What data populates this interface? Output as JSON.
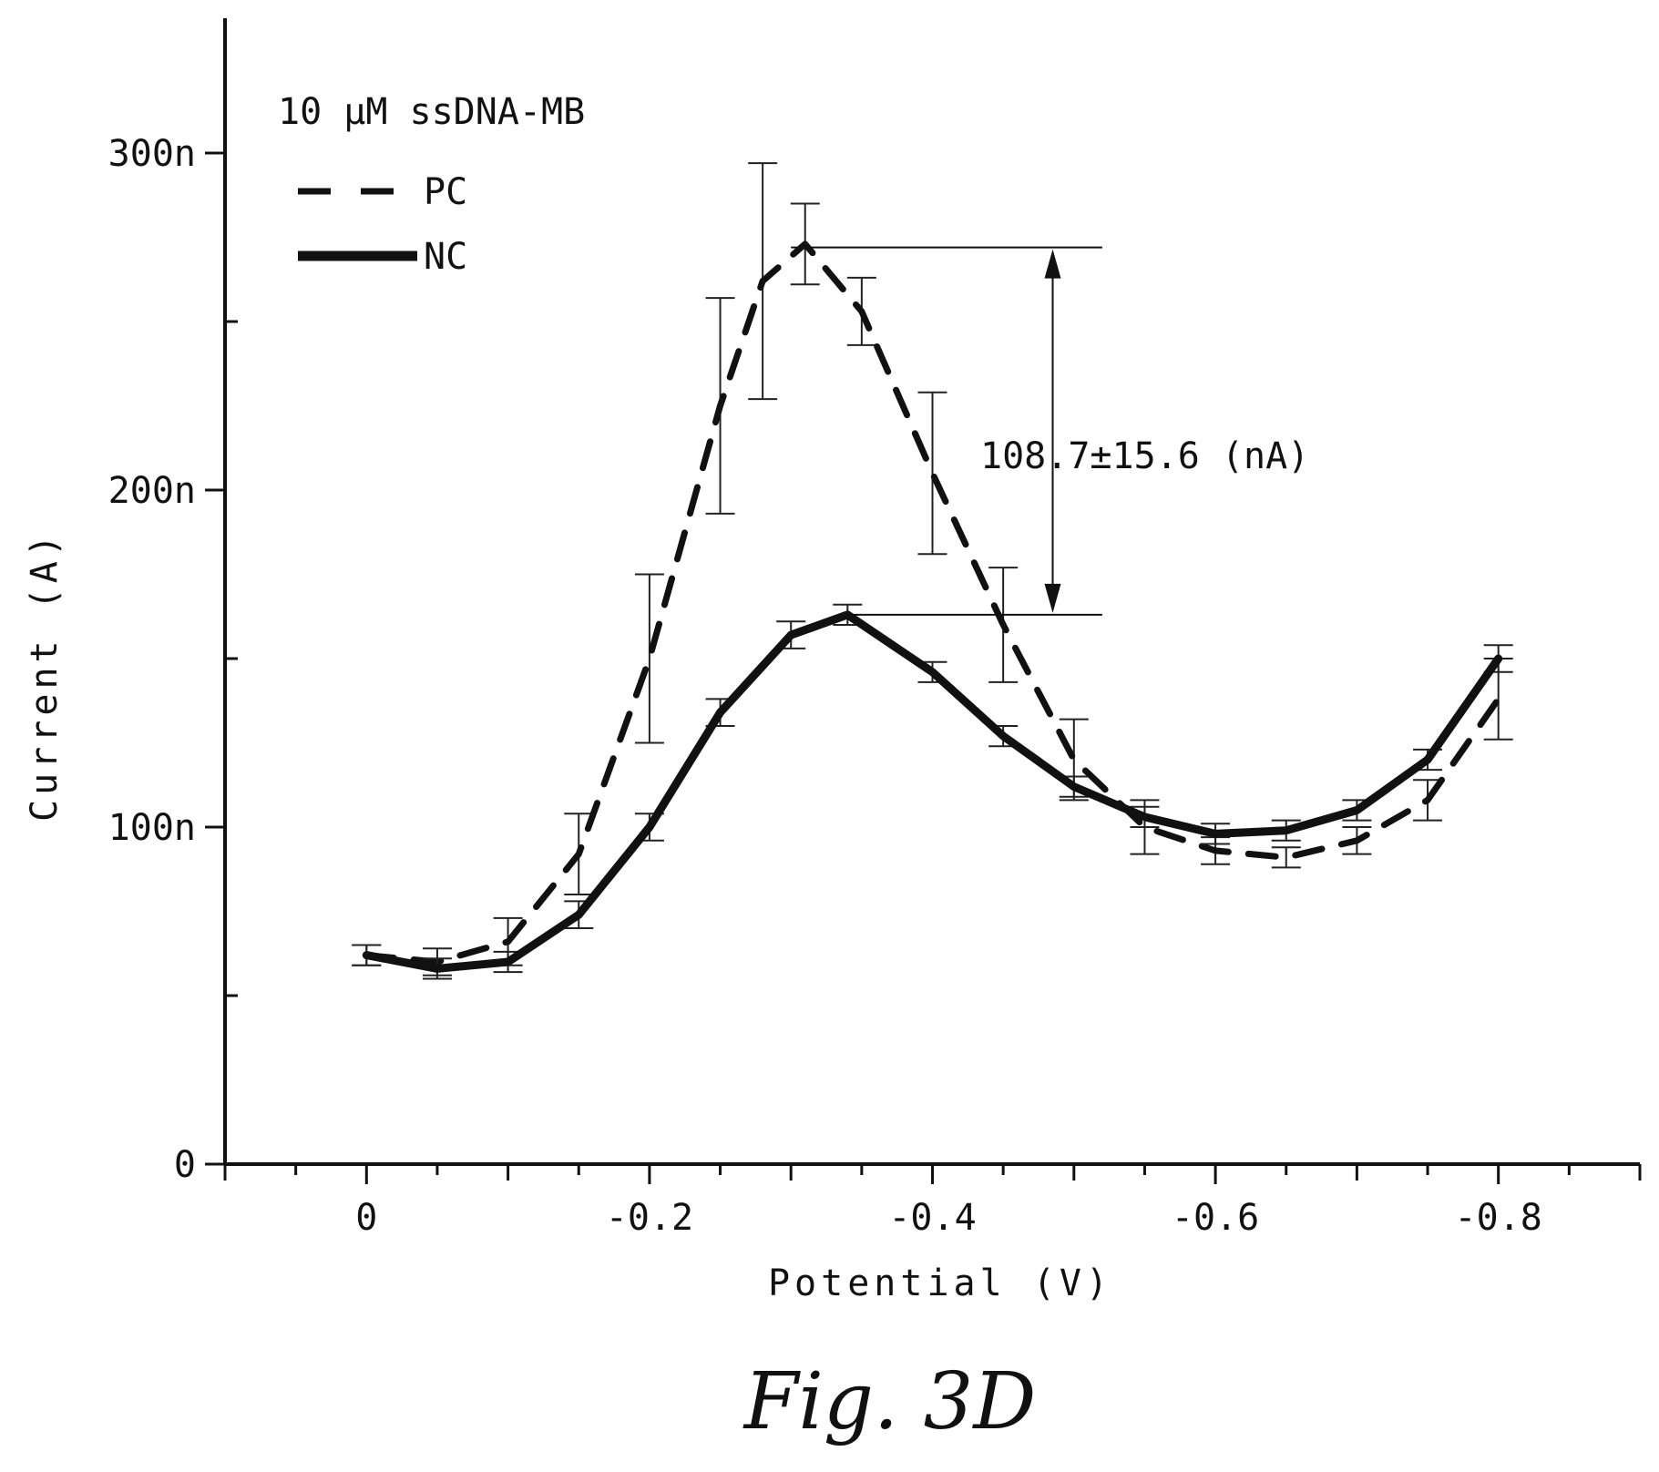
{
  "chart_data": {
    "type": "line",
    "title": "10 μM ssDNA-MB",
    "xlabel": "Potential (V)",
    "ylabel": "Current (A)",
    "xlim": [
      0.1,
      -0.9
    ],
    "ylim": [
      0,
      340
    ],
    "x_ticks": [
      0,
      -0.2,
      -0.4,
      -0.6,
      -0.8
    ],
    "x_tick_labels": [
      "0",
      "-0.2",
      "-0.4",
      "-0.6",
      "-0.8"
    ],
    "y_ticks": [
      0,
      100,
      200,
      300
    ],
    "y_tick_labels": [
      "0",
      "100n",
      "200n",
      "300n"
    ],
    "y_unit": "nA",
    "grid": false,
    "legend_position": "top-left",
    "series": [
      {
        "name": "PC",
        "style": "dashed",
        "error_bars": true,
        "x": [
          0,
          -0.05,
          -0.1,
          -0.15,
          -0.2,
          -0.25,
          -0.28,
          -0.31,
          -0.35,
          -0.4,
          -0.45,
          -0.5,
          -0.55,
          -0.6,
          -0.65,
          -0.7,
          -0.75,
          -0.8
        ],
        "y": [
          62,
          60,
          66,
          92,
          150,
          225,
          262,
          273,
          253,
          205,
          160,
          120,
          100,
          93,
          91,
          96,
          108,
          138
        ],
        "err": [
          3,
          4,
          7,
          12,
          25,
          32,
          35,
          12,
          10,
          24,
          17,
          12,
          8,
          4,
          3,
          4,
          6,
          12
        ]
      },
      {
        "name": "NC",
        "style": "solid",
        "error_bars": true,
        "x": [
          0,
          -0.05,
          -0.1,
          -0.15,
          -0.2,
          -0.25,
          -0.3,
          -0.34,
          -0.4,
          -0.45,
          -0.5,
          -0.55,
          -0.6,
          -0.65,
          -0.7,
          -0.75,
          -0.8
        ],
        "y": [
          62,
          58,
          60,
          74,
          100,
          134,
          157,
          163,
          146,
          127,
          112,
          103,
          98,
          99,
          105,
          120,
          150
        ],
        "err": [
          3,
          3,
          3,
          4,
          4,
          4,
          4,
          3,
          3,
          3,
          3,
          3,
          3,
          3,
          3,
          3,
          4
        ]
      }
    ],
    "annotations": [
      {
        "text": "108.7±15.6 (nA)",
        "y_top": 272,
        "y_bottom": 163,
        "x_start": -0.3,
        "x_end": -0.52,
        "arrow_x": -0.485
      }
    ]
  },
  "caption": "Fig. 3D"
}
